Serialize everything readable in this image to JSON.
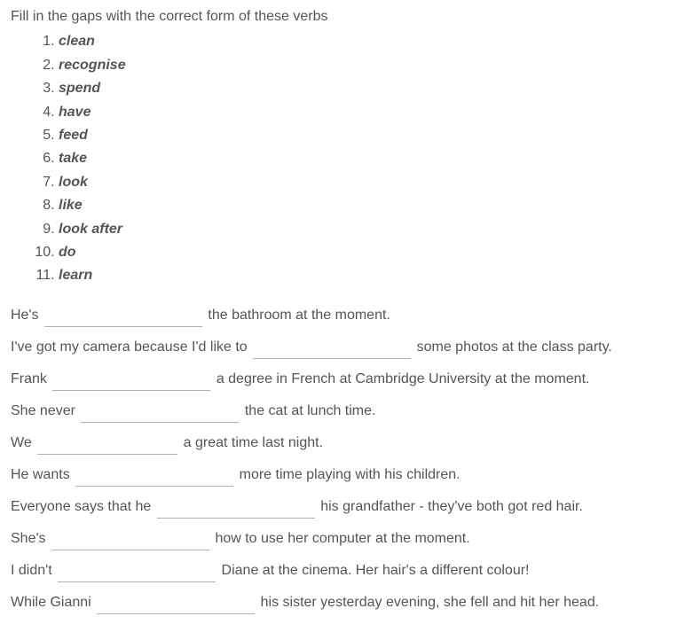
{
  "instruction": "Fill in the gaps with the correct form of these verbs",
  "verbs": [
    "clean",
    "recognise",
    "spend",
    "have",
    "feed",
    "take",
    "look",
    "like",
    "look after",
    "do",
    "learn"
  ],
  "sentences": [
    {
      "pre": "He's",
      "post": "the bathroom at the moment.",
      "bw": "w170"
    },
    {
      "pre": "I've got my camera because I'd like to",
      "post": "some photos at the class party.",
      "bw": "w170"
    },
    {
      "pre": "Frank",
      "post": "a degree in French at Cambridge University at the moment.",
      "bw": "w170"
    },
    {
      "pre": "She never",
      "post": "the cat at lunch time.",
      "bw": "w170"
    },
    {
      "pre": "We",
      "post": "a great time last night.",
      "bw": "w150"
    },
    {
      "pre": "He wants",
      "post": "more time playing with his children.",
      "bw": "w170"
    },
    {
      "pre": "Everyone says that he",
      "post": "his grandfather - they've both got red hair.",
      "bw": "w170"
    },
    {
      "pre": "She's",
      "post": "how to use her computer at the moment.",
      "bw": "w170"
    },
    {
      "pre": "I didn't",
      "post": "Diane at the cinema. Her hair's a different colour!",
      "bw": "w170"
    },
    {
      "pre": "While Gianni",
      "post": "his sister yesterday evening, she fell and hit her head.",
      "bw": "w170"
    }
  ]
}
